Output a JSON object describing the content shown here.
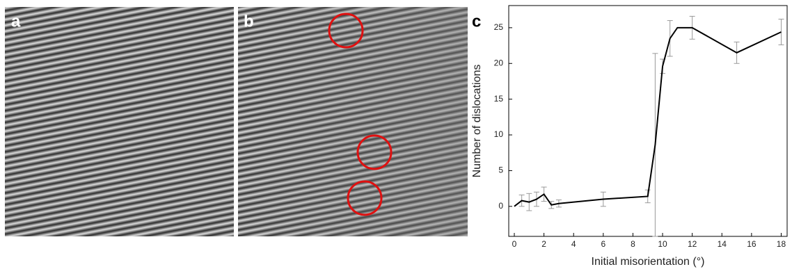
{
  "panel_labels": [
    "a",
    "b",
    "c"
  ],
  "chart_data": {
    "type": "line",
    "x": [
      0,
      0.5,
      1,
      1.5,
      2,
      2.5,
      3,
      6,
      9,
      9.5,
      10,
      10.5,
      11,
      12,
      15,
      18
    ],
    "values": [
      0,
      0.8,
      0.6,
      1.0,
      1.7,
      0.2,
      0.4,
      1.0,
      1.4,
      8.6,
      19.6,
      23.5,
      25,
      25,
      21.5,
      24.4
    ],
    "errors": [
      0,
      0.8,
      1.2,
      1.0,
      1.0,
      0.5,
      0.5,
      1.0,
      0.9,
      12.8,
      1.0,
      2.5,
      0,
      1.6,
      1.5,
      1.8
    ],
    "color": "#000000",
    "error_color": "#999999",
    "xlabel": "Initial misorientation (°)",
    "ylabel": "Number of dislocations",
    "xlim": [
      -0.375,
      18.4
    ],
    "ylim": [
      -4.2,
      28.1
    ],
    "xticks": [
      0,
      2,
      4,
      6,
      8,
      10,
      12,
      14,
      16,
      18
    ],
    "yticks": [
      0,
      5,
      10,
      15,
      20,
      25
    ]
  }
}
